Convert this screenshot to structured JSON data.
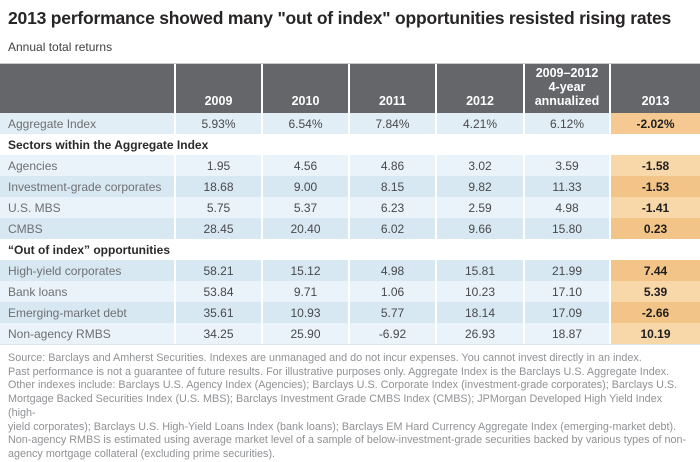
{
  "title": "2013 performance showed many \"out of index\" opportunities resisted rising rates",
  "subtitle": "Annual total returns",
  "colors": {
    "header_bg": "#646669",
    "header_text": "#ffffff",
    "row_blue_light": "#eaf3f9",
    "row_blue_dark": "#d8e8f2",
    "row_blue_aggregate": "#e1eef6",
    "col2013_orange_light": "#f8d7a9",
    "col2013_orange_dark": "#f3c487",
    "col2013_orange_aggregate": "#f6c992",
    "label_text": "#6e6f72",
    "value_text": "#47484b",
    "footnote_text": "#8f9194"
  },
  "table": {
    "columns": [
      "",
      "2009",
      "2010",
      "2011",
      "2012",
      "2009–2012\n4-year\nannualized",
      "2013"
    ],
    "rows": [
      {
        "type": "data",
        "shade": "agg",
        "label": "Aggregate Index",
        "values": [
          "5.93%",
          "6.54%",
          "7.84%",
          "4.21%",
          "6.12%"
        ],
        "y2013": "-2.02%"
      },
      {
        "type": "section",
        "label": "Sectors within the Aggregate Index"
      },
      {
        "type": "data",
        "shade": "light",
        "label": "Agencies",
        "values": [
          "1.95",
          "4.56",
          "4.86",
          "3.02",
          "3.59"
        ],
        "y2013": "-1.58"
      },
      {
        "type": "data",
        "shade": "dark",
        "label": "Investment-grade corporates",
        "values": [
          "18.68",
          "9.00",
          "8.15",
          "9.82",
          "11.33"
        ],
        "y2013": "-1.53"
      },
      {
        "type": "data",
        "shade": "light",
        "label": "U.S. MBS",
        "values": [
          "5.75",
          "5.37",
          "6.23",
          "2.59",
          "4.98"
        ],
        "y2013": "-1.41"
      },
      {
        "type": "data",
        "shade": "dark",
        "label": "CMBS",
        "values": [
          "28.45",
          "20.40",
          "6.02",
          "9.66",
          "15.80"
        ],
        "y2013": "0.23"
      },
      {
        "type": "section",
        "label": "“Out of index” opportunities"
      },
      {
        "type": "data",
        "shade": "dark",
        "label": "High-yield corporates",
        "values": [
          "58.21",
          "15.12",
          "4.98",
          "15.81",
          "21.99"
        ],
        "y2013": "7.44"
      },
      {
        "type": "data",
        "shade": "light",
        "label": "Bank loans",
        "values": [
          "53.84",
          "9.71",
          "1.06",
          "10.23",
          "17.10"
        ],
        "y2013": "5.39"
      },
      {
        "type": "data",
        "shade": "dark",
        "label": "Emerging-market debt",
        "values": [
          "35.61",
          "10.93",
          "5.77",
          "18.14",
          "17.09"
        ],
        "y2013": "-2.66"
      },
      {
        "type": "data",
        "shade": "light",
        "label": "Non-agency RMBS",
        "values": [
          "34.25",
          "25.90",
          "-6.92",
          "26.93",
          "18.87"
        ],
        "y2013": "10.19"
      }
    ]
  },
  "footnote_lines": [
    "Source: Barclays and Amherst Securities. Indexes are unmanaged and do not incur expenses. You cannot invest directly in an index.",
    "Past performance is not a guarantee of future results. For illustrative purposes only. Aggregate Index is the Barclays U.S. Aggregate Index.",
    "Other indexes include: Barclays U.S. Agency Index (Agencies); Barclays U.S. Corporate Index (investment-grade corporates); Barclays U.S.",
    "Mortgage Backed Securities Index (U.S. MBS); Barclays Investment Grade CMBS Index (CMBS); JPMorgan Developed High Yield Index (high-",
    "yield corporates); Barclays U.S. High-Yield Loans Index (bank loans); Barclays EM Hard Currency Aggregate Index (emerging-market debt).",
    "Non-agency RMBS is estimated using average market level of a sample of below-investment-grade securities backed by various types of non-",
    "agency mortgage collateral (excluding prime securities)."
  ],
  "chart_data": {
    "type": "table",
    "title": "2013 performance showed many \"out of index\" opportunities resisted rising rates",
    "subtitle": "Annual total returns",
    "columns": [
      "2009",
      "2010",
      "2011",
      "2012",
      "2009–2012 4-year annualized",
      "2013"
    ],
    "sections": [
      {
        "name": null,
        "rows": [
          {
            "label": "Aggregate Index",
            "values": [
              5.93,
              6.54,
              7.84,
              4.21,
              6.12,
              -2.02
            ],
            "unit": "%"
          }
        ]
      },
      {
        "name": "Sectors within the Aggregate Index",
        "rows": [
          {
            "label": "Agencies",
            "values": [
              1.95,
              4.56,
              4.86,
              3.02,
              3.59,
              -1.58
            ]
          },
          {
            "label": "Investment-grade corporates",
            "values": [
              18.68,
              9.0,
              8.15,
              9.82,
              11.33,
              -1.53
            ]
          },
          {
            "label": "U.S. MBS",
            "values": [
              5.75,
              5.37,
              6.23,
              2.59,
              4.98,
              -1.41
            ]
          },
          {
            "label": "CMBS",
            "values": [
              28.45,
              20.4,
              6.02,
              9.66,
              15.8,
              0.23
            ]
          }
        ]
      },
      {
        "name": "“Out of index” opportunities",
        "rows": [
          {
            "label": "High-yield corporates",
            "values": [
              58.21,
              15.12,
              4.98,
              15.81,
              21.99,
              7.44
            ]
          },
          {
            "label": "Bank loans",
            "values": [
              53.84,
              9.71,
              1.06,
              10.23,
              17.1,
              5.39
            ]
          },
          {
            "label": "Emerging-market debt",
            "values": [
              35.61,
              10.93,
              5.77,
              18.14,
              17.09,
              -2.66
            ]
          },
          {
            "label": "Non-agency RMBS",
            "values": [
              34.25,
              25.9,
              -6.92,
              26.93,
              18.87,
              10.19
            ]
          }
        ]
      }
    ],
    "layout": {
      "highlight_column": "2013",
      "highlight_color": "#f4c78e",
      "row_stripe_colors": [
        "#eaf3f9",
        "#d8e8f2"
      ]
    }
  }
}
